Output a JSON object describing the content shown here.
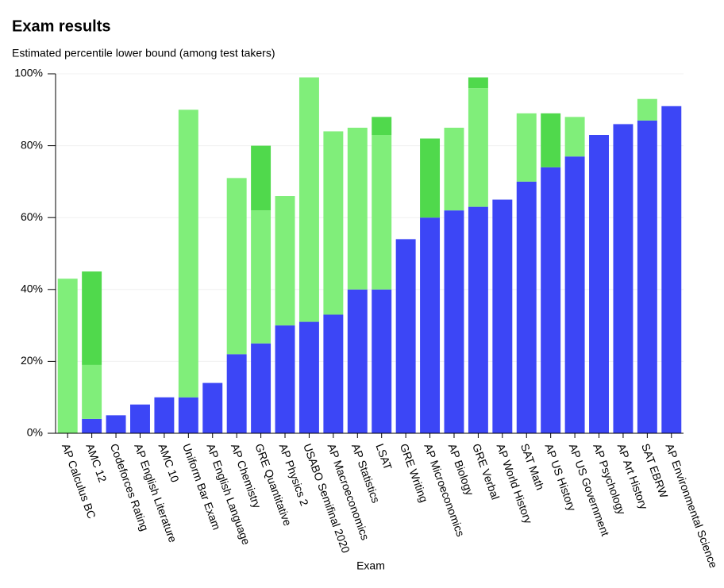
{
  "chart_data": {
    "type": "stacked_bar",
    "title": "Exam results",
    "subtitle": "Estimated percentile lower bound (among test takers)",
    "x_label": "Exam",
    "categories": [
      "AP Calculus BC",
      "AMC 12",
      "Codeforces Rating",
      "AP English Literature",
      "AMC 10",
      "Uniform Bar Exam",
      "AP English Language",
      "AP Chemistry",
      "GRE Quantitative",
      "AP Physics 2",
      "USABO Semifinal 2020",
      "AP Macroeconomics",
      "AP Statistics",
      "LSAT",
      "GRE Writing",
      "AP Microeconomics",
      "AP Biology",
      "GRE Verbal",
      "AP World History",
      "SAT Math",
      "AP US History",
      "AP US Government",
      "AP Psychology",
      "AP Art History",
      "SAT EBRW",
      "AP Environmental Science"
    ],
    "series": [
      {
        "color": "#3c46f6",
        "values": [
          0,
          4,
          5,
          8,
          10,
          10,
          14,
          22,
          25,
          30,
          31,
          33,
          40,
          40,
          54,
          60,
          62,
          63,
          65,
          70,
          74,
          77,
          83,
          86,
          87,
          91
        ]
      },
      {
        "color": "#80ee7a",
        "values": [
          43,
          15,
          0,
          0,
          0,
          80,
          0,
          49,
          37,
          36,
          68,
          51,
          45,
          43,
          0,
          0,
          23,
          33,
          0,
          19,
          0,
          11,
          0,
          0,
          6,
          0
        ]
      },
      {
        "color": "#50d94c",
        "values": [
          0,
          26,
          0,
          0,
          0,
          0,
          0,
          0,
          18,
          0,
          0,
          0,
          0,
          5,
          0,
          22,
          0,
          3,
          0,
          0,
          15,
          0,
          0,
          0,
          0,
          0
        ]
      }
    ],
    "ylim": [
      0,
      100
    ],
    "yticks": [
      {
        "value": 0,
        "label": "0%"
      },
      {
        "value": 20,
        "label": "20%"
      },
      {
        "value": 40,
        "label": "40%"
      },
      {
        "value": 60,
        "label": "60%"
      },
      {
        "value": 80,
        "label": "80%"
      },
      {
        "value": 100,
        "label": "100%"
      }
    ],
    "grid": true
  }
}
